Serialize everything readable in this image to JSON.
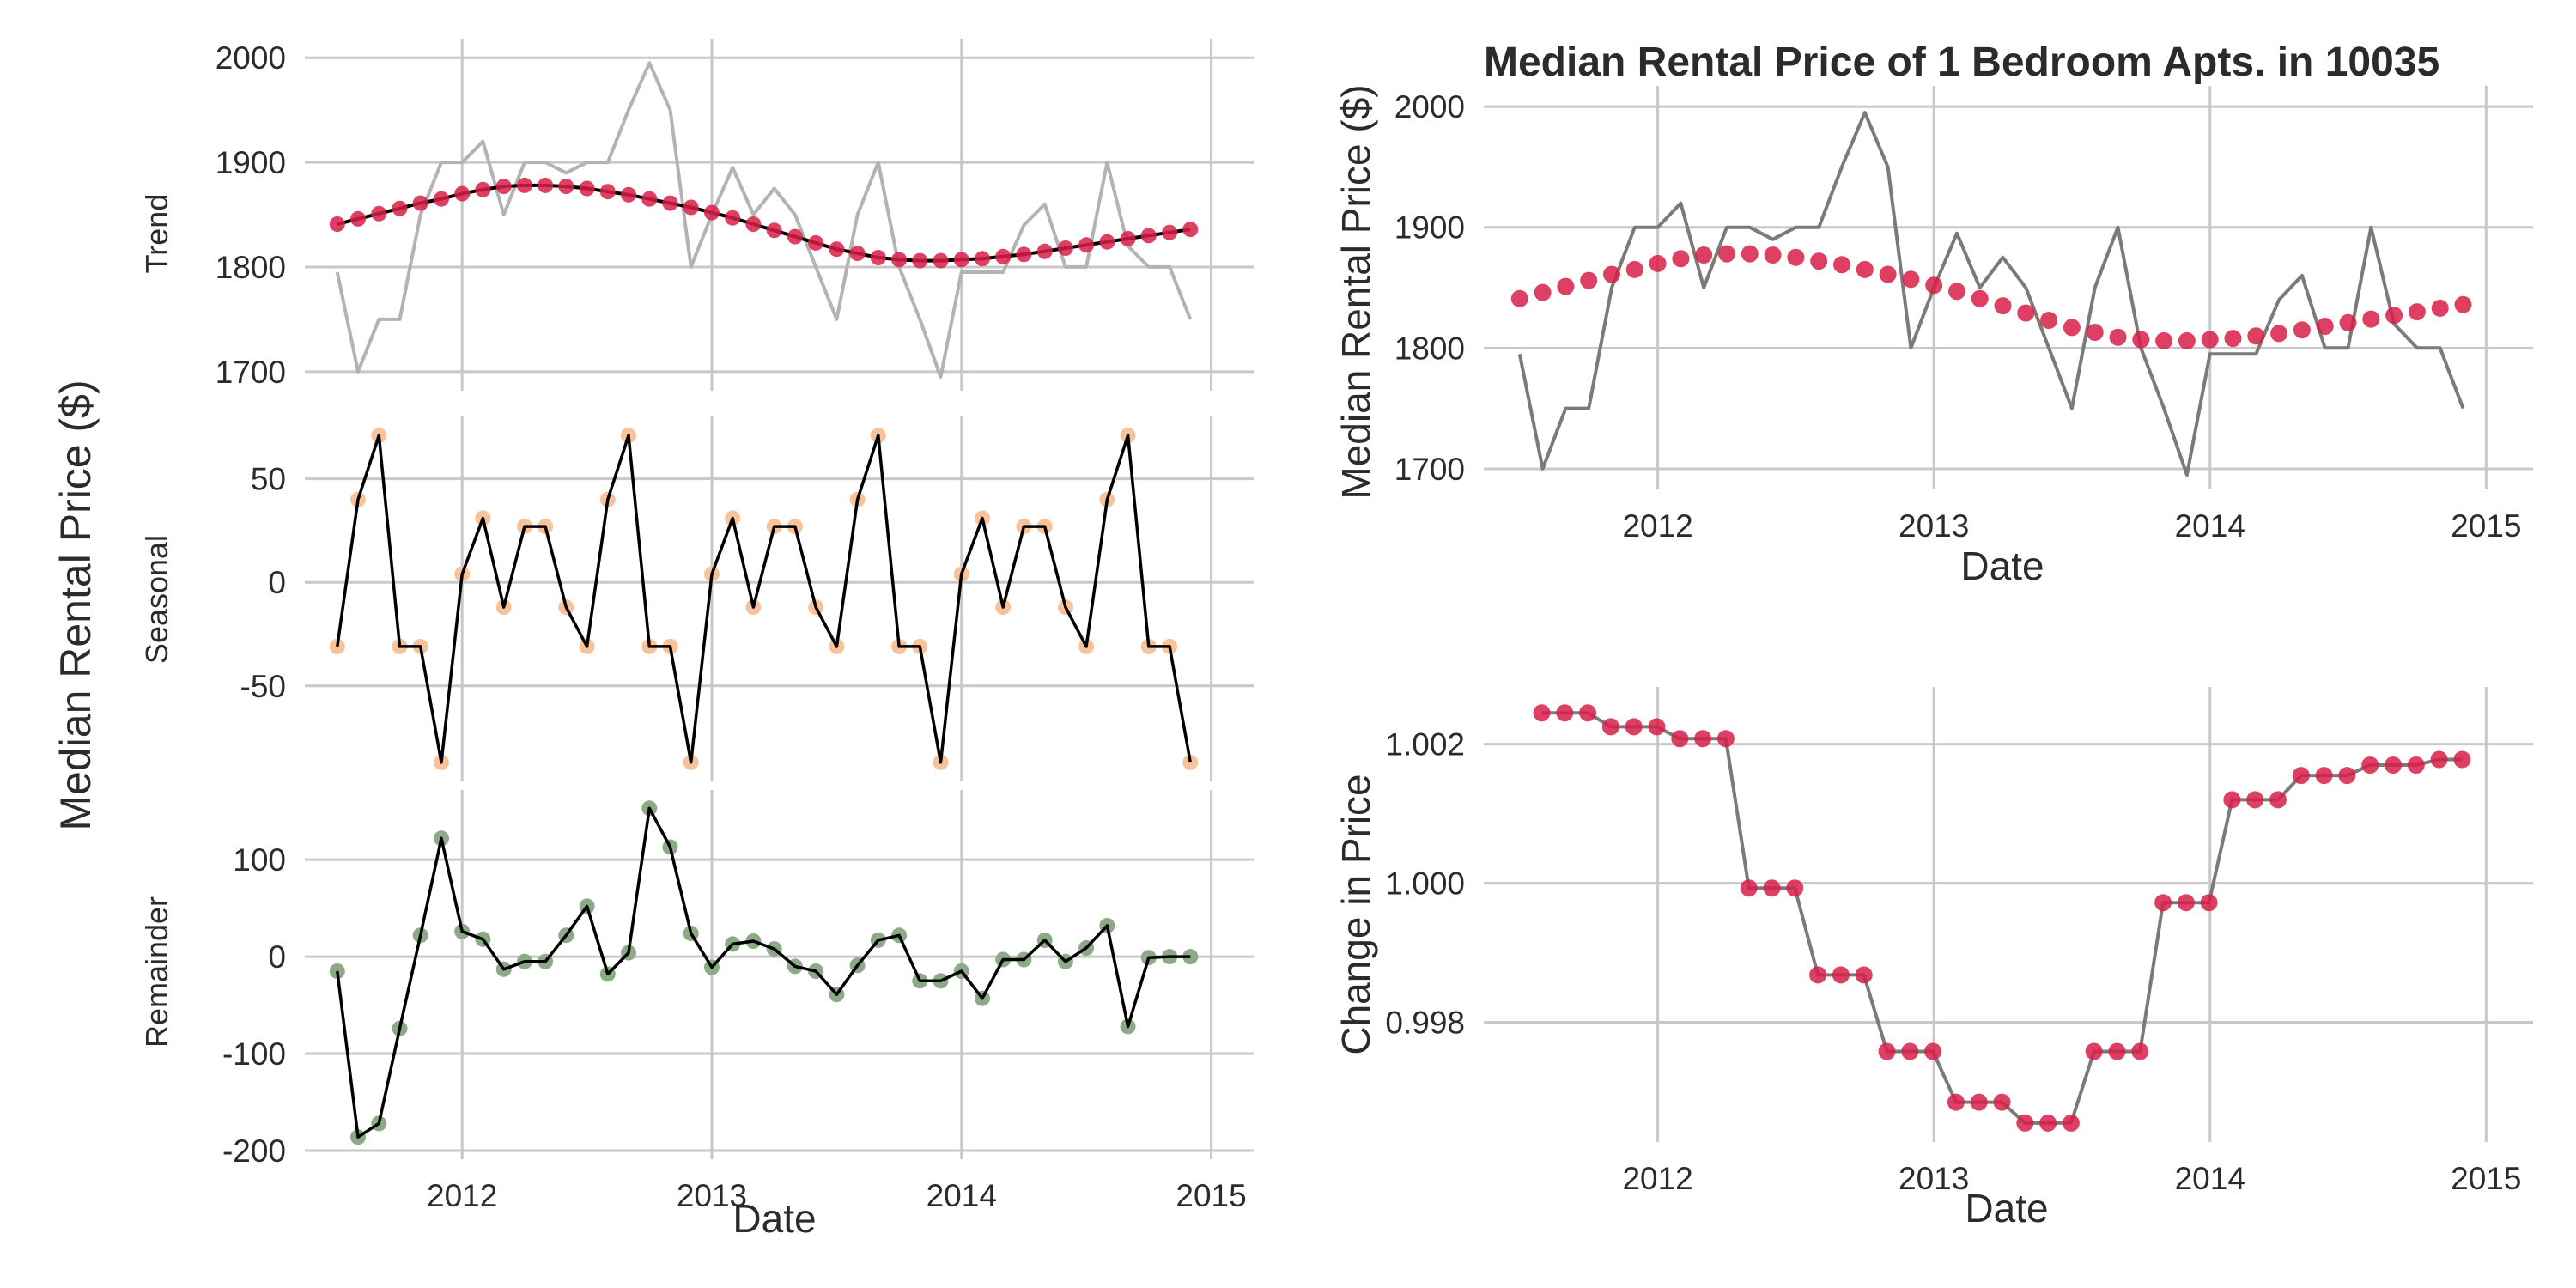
{
  "colors": {
    "highlight": "#d81e48",
    "observed_line": "#7a7a7a",
    "observed_line_light": "#b3b3b3",
    "seasonal_point": "#f8c39a",
    "remainder_point": "#8daa87",
    "component_line": "#000000",
    "grid": "#c8c8c8"
  },
  "shared_ylabel": "Median Rental Price ($)",
  "chart_data": [
    {
      "id": "trend",
      "type": "line",
      "ylabel": "Trend",
      "xlabel": "",
      "xlim": [
        2011.37,
        2015.17
      ],
      "ylim": [
        1690,
        2010
      ],
      "x_ticks": [
        2012,
        2013,
        2014,
        2015
      ],
      "y_ticks": [
        1700,
        1800,
        1900,
        2000
      ],
      "y_tick_labels": [
        "1700",
        "1800",
        "1900",
        "2000"
      ],
      "x_start": 2011.5,
      "x_step": 0.08333,
      "series": [
        {
          "name": "observed",
          "values": [
            1795,
            1700,
            1750,
            1750,
            1850,
            1900,
            1900,
            1920,
            1850,
            1900,
            1900,
            1890,
            1900,
            1900,
            1950,
            1995,
            1950,
            1800,
            1850,
            1895,
            1850,
            1875,
            1850,
            1800,
            1750,
            1850,
            1900,
            1800,
            1750,
            1695,
            1795,
            1795,
            1795,
            1840,
            1860,
            1800,
            1800,
            1900,
            1820,
            1800,
            1800,
            1750
          ]
        },
        {
          "name": "trend",
          "values": [
            1841,
            1846,
            1851,
            1856,
            1861,
            1865,
            1870,
            1874,
            1877,
            1878,
            1878,
            1877,
            1875,
            1872,
            1869,
            1865,
            1861,
            1857,
            1852,
            1847,
            1841,
            1835,
            1829,
            1823,
            1817,
            1813,
            1809,
            1807,
            1806,
            1806,
            1807,
            1808,
            1810,
            1812,
            1815,
            1818,
            1821,
            1824,
            1827,
            1830,
            1833,
            1836
          ]
        }
      ]
    },
    {
      "id": "seasonal",
      "type": "line",
      "ylabel": "Seasonal",
      "xlabel": "",
      "xlim": [
        2011.37,
        2015.17
      ],
      "ylim": [
        -92,
        76
      ],
      "x_ticks": [
        2012,
        2013,
        2014,
        2015
      ],
      "y_ticks": [
        -50,
        0,
        50
      ],
      "y_tick_labels": [
        "-50",
        "0",
        "50"
      ],
      "x_start": 2011.5,
      "x_step": 0.08333,
      "series": [
        {
          "name": "seasonal",
          "values": [
            -31,
            40,
            71,
            -31,
            -31,
            -87,
            4,
            31,
            -12,
            27,
            27,
            -12,
            -31,
            40,
            71,
            -31,
            -31,
            -87,
            4,
            31,
            -12,
            27,
            27,
            -12,
            -31,
            40,
            71,
            -31,
            -31,
            -87,
            4,
            31,
            -12,
            27,
            27,
            -12,
            -31,
            40,
            71,
            -31,
            -31,
            -87
          ]
        }
      ]
    },
    {
      "id": "remainder",
      "type": "line",
      "ylabel": "Remainder",
      "xlabel": "Date",
      "xlim": [
        2011.37,
        2015.17
      ],
      "ylim": [
        -200,
        163
      ],
      "x_ticks": [
        2012,
        2013,
        2014,
        2015
      ],
      "x_tick_labels": [
        "2012",
        "2013",
        "2014",
        "2015"
      ],
      "y_ticks": [
        -200,
        -100,
        0,
        100
      ],
      "y_tick_labels": [
        "-200",
        "-100",
        "0",
        "100"
      ],
      "x_start": 2011.5,
      "x_step": 0.08333,
      "series": [
        {
          "name": "remainder",
          "values": [
            -15,
            -186,
            -172,
            -74,
            22,
            122,
            26,
            18,
            -13,
            -5,
            -5,
            22,
            52,
            -18,
            4,
            153,
            113,
            24,
            -11,
            13,
            16,
            8,
            -10,
            -15,
            -39,
            -9,
            17,
            22,
            -25,
            -25,
            -15,
            -43,
            -3,
            -3,
            17,
            -5,
            9,
            32,
            -72,
            -1,
            0,
            0
          ]
        }
      ]
    },
    {
      "id": "rental_price",
      "type": "line",
      "title": "Median Rental Price of 1 Bedroom Apts. in 10035",
      "ylabel": "Median Rental Price ($)",
      "xlabel": "Date",
      "xlim": [
        2011.37,
        2015.17
      ],
      "ylim": [
        1690,
        2010
      ],
      "x_ticks": [
        2012,
        2013,
        2014,
        2015
      ],
      "x_tick_labels": [
        "2012",
        "2013",
        "2014",
        "2015"
      ],
      "y_ticks": [
        1700,
        1800,
        1900,
        2000
      ],
      "y_tick_labels": [
        "1700",
        "1800",
        "1900",
        "2000"
      ],
      "x_start": 2011.5,
      "x_step": 0.08333,
      "series": [
        {
          "name": "observed",
          "values": [
            1795,
            1700,
            1750,
            1750,
            1850,
            1900,
            1900,
            1920,
            1850,
            1900,
            1900,
            1890,
            1900,
            1900,
            1950,
            1995,
            1950,
            1800,
            1850,
            1895,
            1850,
            1875,
            1850,
            1800,
            1750,
            1850,
            1900,
            1800,
            1750,
            1695,
            1795,
            1795,
            1795,
            1840,
            1860,
            1800,
            1800,
            1900,
            1820,
            1800,
            1800,
            1750
          ]
        },
        {
          "name": "trend",
          "values": [
            1841,
            1846,
            1851,
            1856,
            1861,
            1865,
            1870,
            1874,
            1877,
            1878,
            1878,
            1877,
            1875,
            1872,
            1869,
            1865,
            1861,
            1857,
            1852,
            1847,
            1841,
            1835,
            1829,
            1823,
            1817,
            1813,
            1809,
            1807,
            1806,
            1806,
            1807,
            1808,
            1810,
            1812,
            1815,
            1818,
            1821,
            1824,
            1827,
            1830,
            1833,
            1836
          ]
        }
      ]
    },
    {
      "id": "change",
      "type": "line",
      "ylabel": "Change in Price",
      "xlabel": "Date",
      "xlim": [
        2011.37,
        2015.17
      ],
      "ylim": [
        0.9964,
        1.0027
      ],
      "x_ticks": [
        2012,
        2013,
        2014,
        2015
      ],
      "x_tick_labels": [
        "2012",
        "2013",
        "2014",
        "2015"
      ],
      "y_ticks": [
        0.998,
        1.0,
        1.002
      ],
      "y_tick_labels": [
        "0.998",
        "1.000",
        "1.002"
      ],
      "x_start": 2011.58,
      "x_step": 0.08333,
      "series": [
        {
          "name": "change",
          "values": [
            1.00245,
            1.00245,
            1.00245,
            1.00225,
            1.00225,
            1.00225,
            1.00208,
            1.00208,
            1.00208,
            0.99993,
            0.99993,
            0.99993,
            0.99868,
            0.99868,
            0.99868,
            0.99758,
            0.99758,
            0.99758,
            0.99685,
            0.99685,
            0.99685,
            0.99655,
            0.99655,
            0.99655,
            0.99758,
            0.99758,
            0.99758,
            0.99972,
            0.99972,
            0.99972,
            1.0012,
            1.0012,
            1.0012,
            1.00155,
            1.00155,
            1.00155,
            1.0017,
            1.0017,
            1.0017,
            1.00178,
            1.00178
          ]
        }
      ]
    }
  ]
}
